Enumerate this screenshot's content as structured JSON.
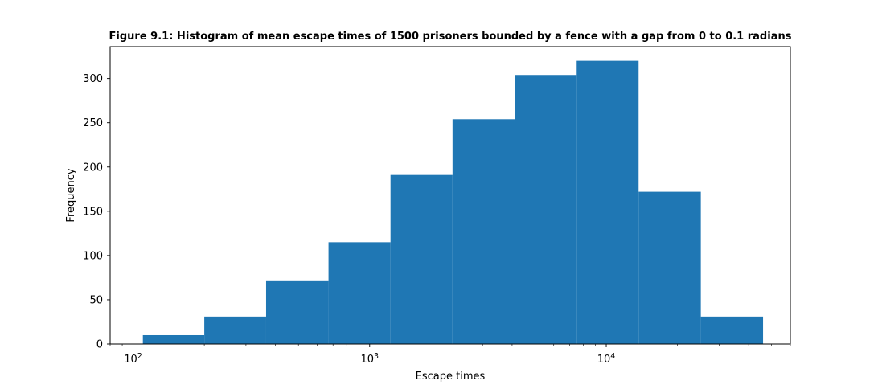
{
  "chart_data": {
    "type": "histogram",
    "title": "Figure 9.1: Histogram of mean escape times of 1500 prisoners bounded by a fence with a gap from 0 to 0.1 radians",
    "xlabel": "Escape times",
    "ylabel": "Frequency",
    "x_scale": "log",
    "xlim": [
      80,
      60000
    ],
    "ylim": [
      0,
      336
    ],
    "grid": false,
    "bar_color": "#1f77b4",
    "x_major_ticks": [
      {
        "value": 100,
        "base": "10",
        "exp": "2"
      },
      {
        "value": 1000,
        "base": "10",
        "exp": "3"
      },
      {
        "value": 10000,
        "base": "10",
        "exp": "4"
      }
    ],
    "y_ticks": [
      0,
      50,
      100,
      150,
      200,
      250,
      300
    ],
    "bins": [
      {
        "x0": 110,
        "x1": 200,
        "count": 10
      },
      {
        "x0": 200,
        "x1": 365,
        "count": 31
      },
      {
        "x0": 365,
        "x1": 670,
        "count": 71
      },
      {
        "x0": 670,
        "x1": 1225,
        "count": 115
      },
      {
        "x0": 1225,
        "x1": 2240,
        "count": 191
      },
      {
        "x0": 2240,
        "x1": 4100,
        "count": 254
      },
      {
        "x0": 4100,
        "x1": 7500,
        "count": 304
      },
      {
        "x0": 7500,
        "x1": 13700,
        "count": 320
      },
      {
        "x0": 13700,
        "x1": 25100,
        "count": 172
      },
      {
        "x0": 25100,
        "x1": 46000,
        "count": 31
      }
    ]
  }
}
